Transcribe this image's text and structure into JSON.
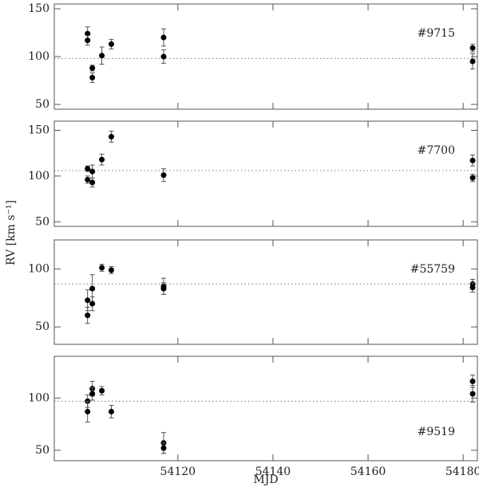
{
  "chart_data": [
    {
      "type": "scatter",
      "ylabel": "RV [km s⁻¹]",
      "xlim": [
        54094,
        54183
      ],
      "xticks": [
        54120,
        54140,
        54160,
        54180
      ],
      "ylim": [
        45,
        155
      ],
      "yticks": [
        50,
        100,
        150
      ],
      "ref_line": 98,
      "legend": "upper right",
      "series": [
        {
          "name": "#9715",
          "color": "#000000",
          "x": [
            54101,
            54101,
            54102,
            54102,
            54104,
            54106,
            54117,
            54117,
            54182,
            54182
          ],
          "values": [
            124,
            117,
            88,
            78,
            101,
            113,
            120,
            100,
            109,
            95
          ],
          "errors": [
            7,
            5,
            3,
            5,
            9,
            5,
            9,
            7,
            4,
            8
          ]
        }
      ]
    },
    {
      "type": "scatter",
      "xlim": [
        54094,
        54183
      ],
      "xticks": [
        54120,
        54140,
        54160,
        54180
      ],
      "ylim": [
        45,
        160
      ],
      "yticks": [
        50,
        100,
        150
      ],
      "ref_line": 106,
      "legend": "upper right",
      "series": [
        {
          "name": "#7700",
          "color": "#000000",
          "x": [
            54101,
            54101,
            54102,
            54102,
            54104,
            54106,
            54117,
            54182,
            54182
          ],
          "values": [
            108,
            96,
            105,
            93,
            118,
            143,
            101,
            117,
            98
          ],
          "errors": [
            3,
            4,
            7,
            5,
            6,
            6,
            7,
            6,
            4
          ]
        }
      ]
    },
    {
      "type": "scatter",
      "xlim": [
        54094,
        54183
      ],
      "xticks": [
        54120,
        54140,
        54160,
        54180
      ],
      "ylim": [
        35,
        125
      ],
      "yticks": [
        50,
        100
      ],
      "ref_line": 87,
      "legend": "upper right",
      "series": [
        {
          "name": "#55759",
          "color": "#000000",
          "x": [
            54101,
            54101,
            54102,
            54102,
            54104,
            54106,
            54117,
            54117,
            54182,
            54182
          ],
          "values": [
            73,
            60,
            83,
            70,
            101,
            99,
            85,
            83,
            87,
            84
          ],
          "errors": [
            9,
            7,
            12,
            6,
            3,
            3,
            7,
            5,
            4,
            4
          ]
        }
      ]
    },
    {
      "type": "scatter",
      "xlabel": "MJD",
      "xlim": [
        54094,
        54183
      ],
      "xticks": [
        54120,
        54140,
        54160,
        54180
      ],
      "ylim": [
        40,
        140
      ],
      "yticks": [
        50,
        100
      ],
      "ref_line": 97,
      "legend": "lower right",
      "series": [
        {
          "name": "#9519",
          "color": "#000000",
          "x": [
            54101,
            54101,
            54102,
            54102,
            54104,
            54106,
            54117,
            54117,
            54182,
            54182
          ],
          "values": [
            97,
            87,
            109,
            104,
            107,
            87,
            57,
            52,
            116,
            104
          ],
          "errors": [
            6,
            10,
            7,
            6,
            4,
            6,
            10,
            5,
            6,
            8
          ]
        }
      ]
    }
  ]
}
